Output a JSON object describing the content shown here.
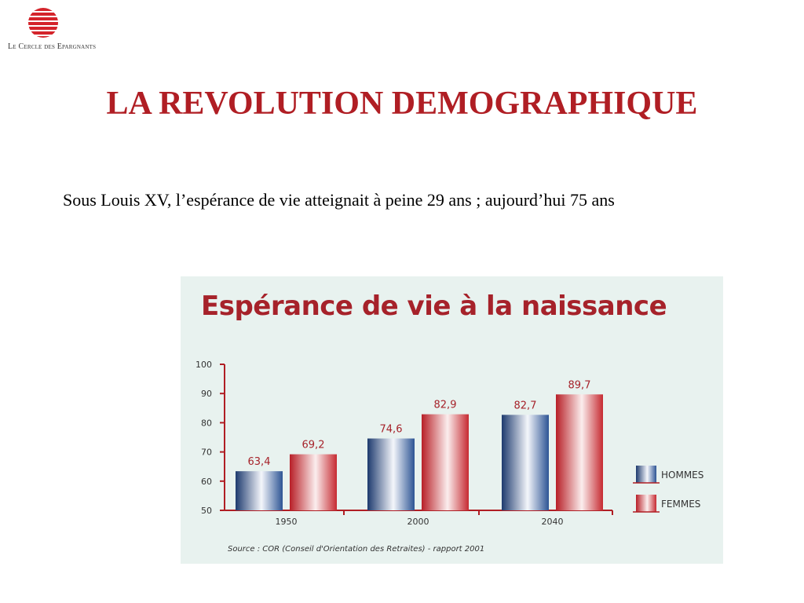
{
  "header": {
    "logo_text": "Le Cercle des Epargnants",
    "title": "LA REVOLUTION DEMOGRAPHIQUE"
  },
  "intro_text": "Sous Louis XV, l’espérance de vie atteignait à peine 29 ans ; aujourd’hui 75 ans",
  "colors": {
    "accent": "#b01e24",
    "chart_title": "#a6222a",
    "panel_background": "#e8f2ef",
    "axis": "#b01e24",
    "hommes": "#2a4f8c",
    "femmes": "#c0262e"
  },
  "chart_data": {
    "type": "bar",
    "title": "Espérance de vie à la naissance",
    "categories": [
      "1950",
      "2000",
      "2040"
    ],
    "series": [
      {
        "name": "HOMMES",
        "values": [
          63.4,
          74.6,
          82.7
        ],
        "labels": [
          "63,4",
          "74,6",
          "82,7"
        ]
      },
      {
        "name": "FEMMES",
        "values": [
          69.2,
          82.9,
          89.7
        ],
        "labels": [
          "69,2",
          "82,9",
          "89,7"
        ]
      }
    ],
    "ylim": [
      50,
      100
    ],
    "yticks": [
      50,
      60,
      70,
      80,
      90,
      100
    ],
    "grid": false,
    "legend": "bottom-right",
    "source": "Source : COR (Conseil d'Orientation des Retraites) - rapport 2001"
  }
}
